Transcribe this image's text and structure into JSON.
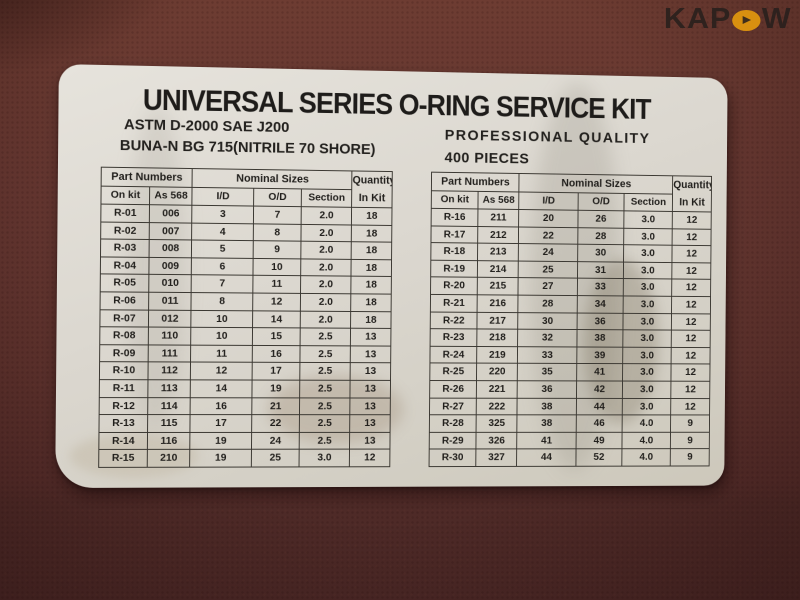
{
  "brand": {
    "name": "KAPOW",
    "text_before_o": "KAP",
    "text_after_o": "W"
  },
  "label": {
    "title": "UNIVERSAL SERIES O-RING SERVICE KIT",
    "spec_line1": "ASTM D-2000 SAE J200",
    "spec_line2": "BUNA-N BG 715(NITRILE 70 SHORE)",
    "quality_line1": "PROFESSIONAL QUALITY",
    "quality_line2": "400 PIECES"
  },
  "table_headers": {
    "part_numbers": "Part Numbers",
    "nominal_sizes": "Nominal Sizes",
    "quantity": "Quantity",
    "on_kit": "On kit",
    "as_568": "As 568",
    "id": "I/D",
    "od": "O/D",
    "section": "Section",
    "in_kit": "In Kit"
  },
  "tables": [
    {
      "rows": [
        [
          "R-01",
          "006",
          "3",
          "7",
          "2.0",
          "18"
        ],
        [
          "R-02",
          "007",
          "4",
          "8",
          "2.0",
          "18"
        ],
        [
          "R-03",
          "008",
          "5",
          "9",
          "2.0",
          "18"
        ],
        [
          "R-04",
          "009",
          "6",
          "10",
          "2.0",
          "18"
        ],
        [
          "R-05",
          "010",
          "7",
          "11",
          "2.0",
          "18"
        ],
        [
          "R-06",
          "011",
          "8",
          "12",
          "2.0",
          "18"
        ],
        [
          "R-07",
          "012",
          "10",
          "14",
          "2.0",
          "18"
        ],
        [
          "R-08",
          "110",
          "10",
          "15",
          "2.5",
          "13"
        ],
        [
          "R-09",
          "111",
          "11",
          "16",
          "2.5",
          "13"
        ],
        [
          "R-10",
          "112",
          "12",
          "17",
          "2.5",
          "13"
        ],
        [
          "R-11",
          "113",
          "14",
          "19",
          "2.5",
          "13"
        ],
        [
          "R-12",
          "114",
          "16",
          "21",
          "2.5",
          "13"
        ],
        [
          "R-13",
          "115",
          "17",
          "22",
          "2.5",
          "13"
        ],
        [
          "R-14",
          "116",
          "19",
          "24",
          "2.5",
          "13"
        ],
        [
          "R-15",
          "210",
          "19",
          "25",
          "3.0",
          "12"
        ]
      ]
    },
    {
      "rows": [
        [
          "R-16",
          "211",
          "20",
          "26",
          "3.0",
          "12"
        ],
        [
          "R-17",
          "212",
          "22",
          "28",
          "3.0",
          "12"
        ],
        [
          "R-18",
          "213",
          "24",
          "30",
          "3.0",
          "12"
        ],
        [
          "R-19",
          "214",
          "25",
          "31",
          "3.0",
          "12"
        ],
        [
          "R-20",
          "215",
          "27",
          "33",
          "3.0",
          "12"
        ],
        [
          "R-21",
          "216",
          "28",
          "34",
          "3.0",
          "12"
        ],
        [
          "R-22",
          "217",
          "30",
          "36",
          "3.0",
          "12"
        ],
        [
          "R-23",
          "218",
          "32",
          "38",
          "3.0",
          "12"
        ],
        [
          "R-24",
          "219",
          "33",
          "39",
          "3.0",
          "12"
        ],
        [
          "R-25",
          "220",
          "35",
          "41",
          "3.0",
          "12"
        ],
        [
          "R-26",
          "221",
          "36",
          "42",
          "3.0",
          "12"
        ],
        [
          "R-27",
          "222",
          "38",
          "44",
          "3.0",
          "12"
        ],
        [
          "R-28",
          "325",
          "38",
          "46",
          "4.0",
          "9"
        ],
        [
          "R-29",
          "326",
          "41",
          "49",
          "4.0",
          "9"
        ],
        [
          "R-30",
          "327",
          "44",
          "52",
          "4.0",
          "9"
        ]
      ]
    }
  ],
  "colors": {
    "surface": "#5c312c",
    "surface_dark": "#4b2826",
    "label_paper": "#d8d4ca",
    "ink": "#201e1b",
    "logo_text": "#261f1c",
    "logo_o": "#eea10c"
  }
}
